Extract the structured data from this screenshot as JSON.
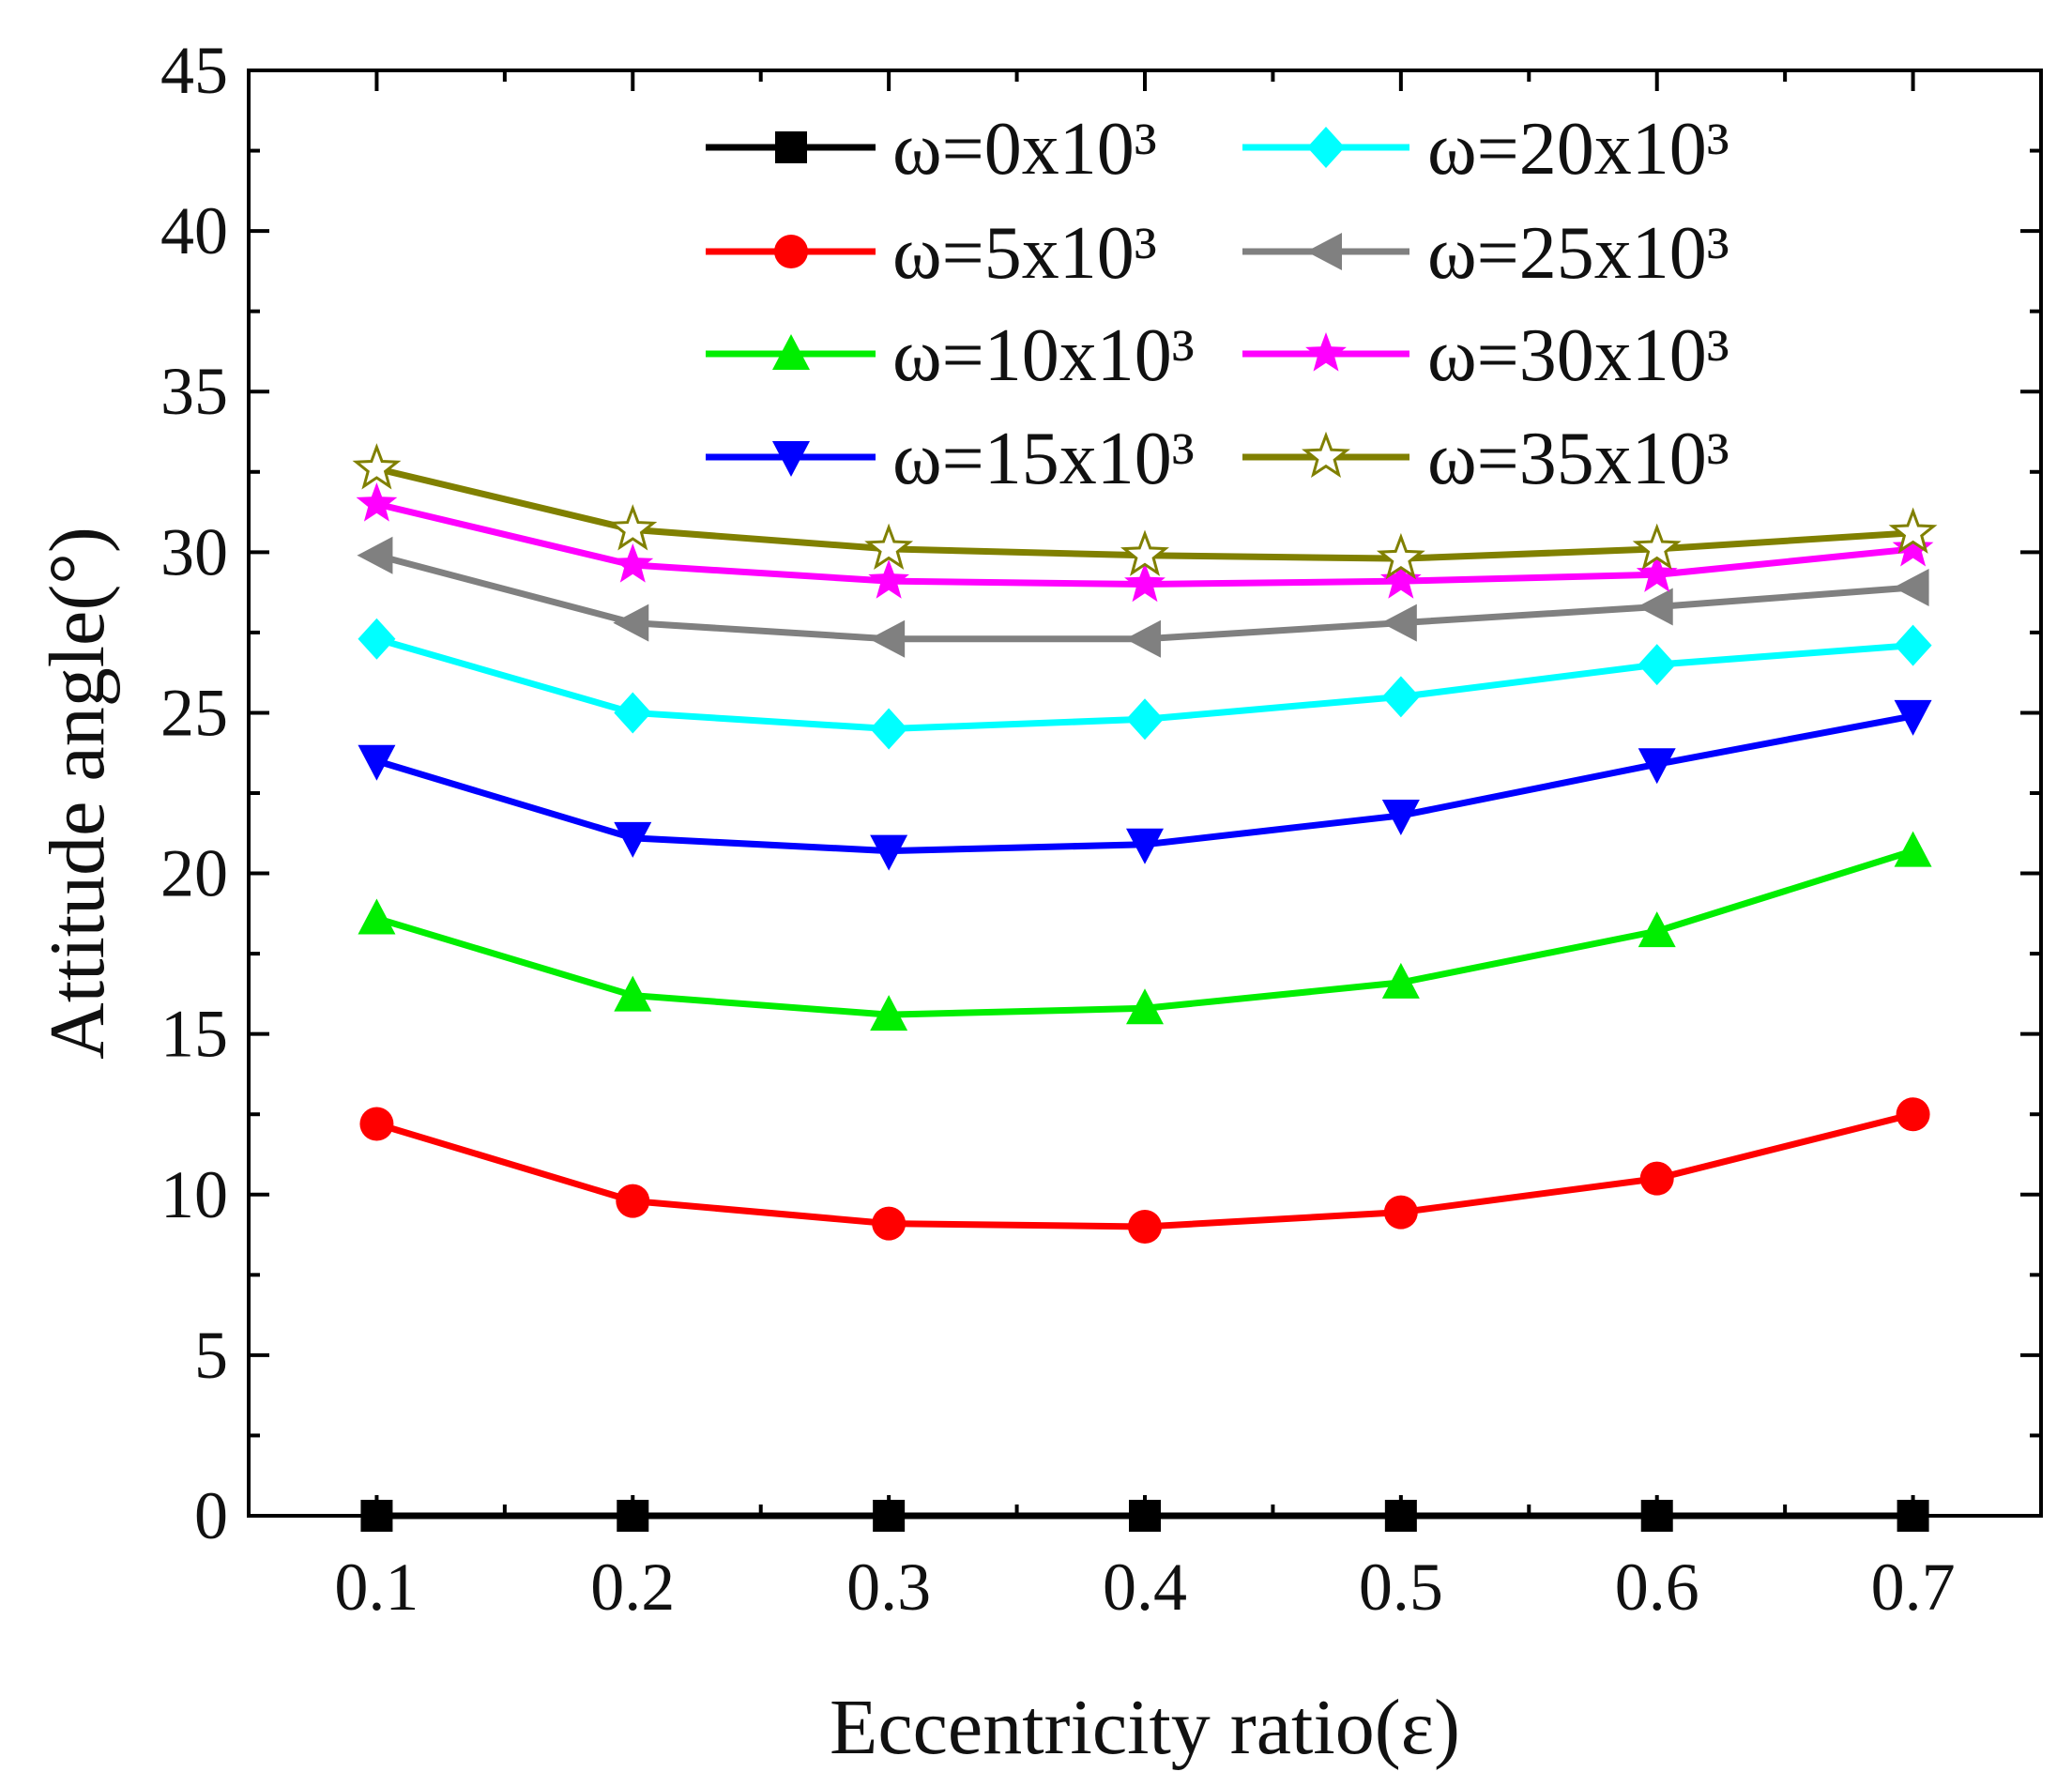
{
  "chart_data": {
    "type": "line",
    "title": "",
    "xlabel": "Eccentricity ratio(ε)",
    "ylabel": "Attitude angle(°)",
    "xlim": [
      0.05,
      0.75
    ],
    "ylim": [
      0,
      45
    ],
    "x": [
      0.1,
      0.2,
      0.3,
      0.4,
      0.5,
      0.6,
      0.7
    ],
    "x_tick_labels": [
      "0.1",
      "0.2",
      "0.3",
      "0.4",
      "0.5",
      "0.6",
      "0.7"
    ],
    "y_ticks": [
      0,
      5,
      10,
      15,
      20,
      25,
      30,
      35,
      40,
      45
    ],
    "y_tick_labels": [
      "0",
      "5",
      "10",
      "15",
      "20",
      "25",
      "30",
      "35",
      "40",
      "45"
    ],
    "grid": false,
    "legend_placement": "top-center",
    "series": [
      {
        "name": "ω=0x10³",
        "color": "#000000",
        "marker": "square",
        "values": [
          0,
          0,
          0,
          0,
          0,
          0,
          0
        ]
      },
      {
        "name": "ω=5x10³",
        "color": "#ff0000",
        "marker": "circle",
        "values": [
          12.2,
          9.8,
          9.1,
          9.0,
          9.45,
          10.5,
          12.5
        ]
      },
      {
        "name": "ω=10x10³",
        "color": "#00ee00",
        "marker": "triangle-up",
        "values": [
          18.6,
          16.2,
          15.6,
          15.8,
          16.6,
          18.2,
          20.7
        ]
      },
      {
        "name": "ω=15x10³",
        "color": "#0000ff",
        "marker": "triangle-down",
        "values": [
          23.5,
          21.1,
          20.7,
          20.9,
          21.8,
          23.4,
          24.9
        ]
      },
      {
        "name": "ω=20x10³",
        "color": "#00ffff",
        "marker": "diamond",
        "values": [
          27.3,
          25.0,
          24.5,
          24.8,
          25.5,
          26.5,
          27.1
        ]
      },
      {
        "name": "ω=25x10³",
        "color": "#808080",
        "marker": "triangle-left",
        "values": [
          29.9,
          27.8,
          27.3,
          27.3,
          27.8,
          28.3,
          28.9
        ]
      },
      {
        "name": "ω=30x10³",
        "color": "#ff00ff",
        "marker": "star-filled",
        "values": [
          31.5,
          29.6,
          29.1,
          29.0,
          29.1,
          29.3,
          30.1
        ]
      },
      {
        "name": "ω=35x10³",
        "color": "#808000",
        "marker": "star-open",
        "values": [
          32.6,
          30.7,
          30.1,
          29.9,
          29.8,
          30.1,
          30.6
        ]
      }
    ]
  }
}
